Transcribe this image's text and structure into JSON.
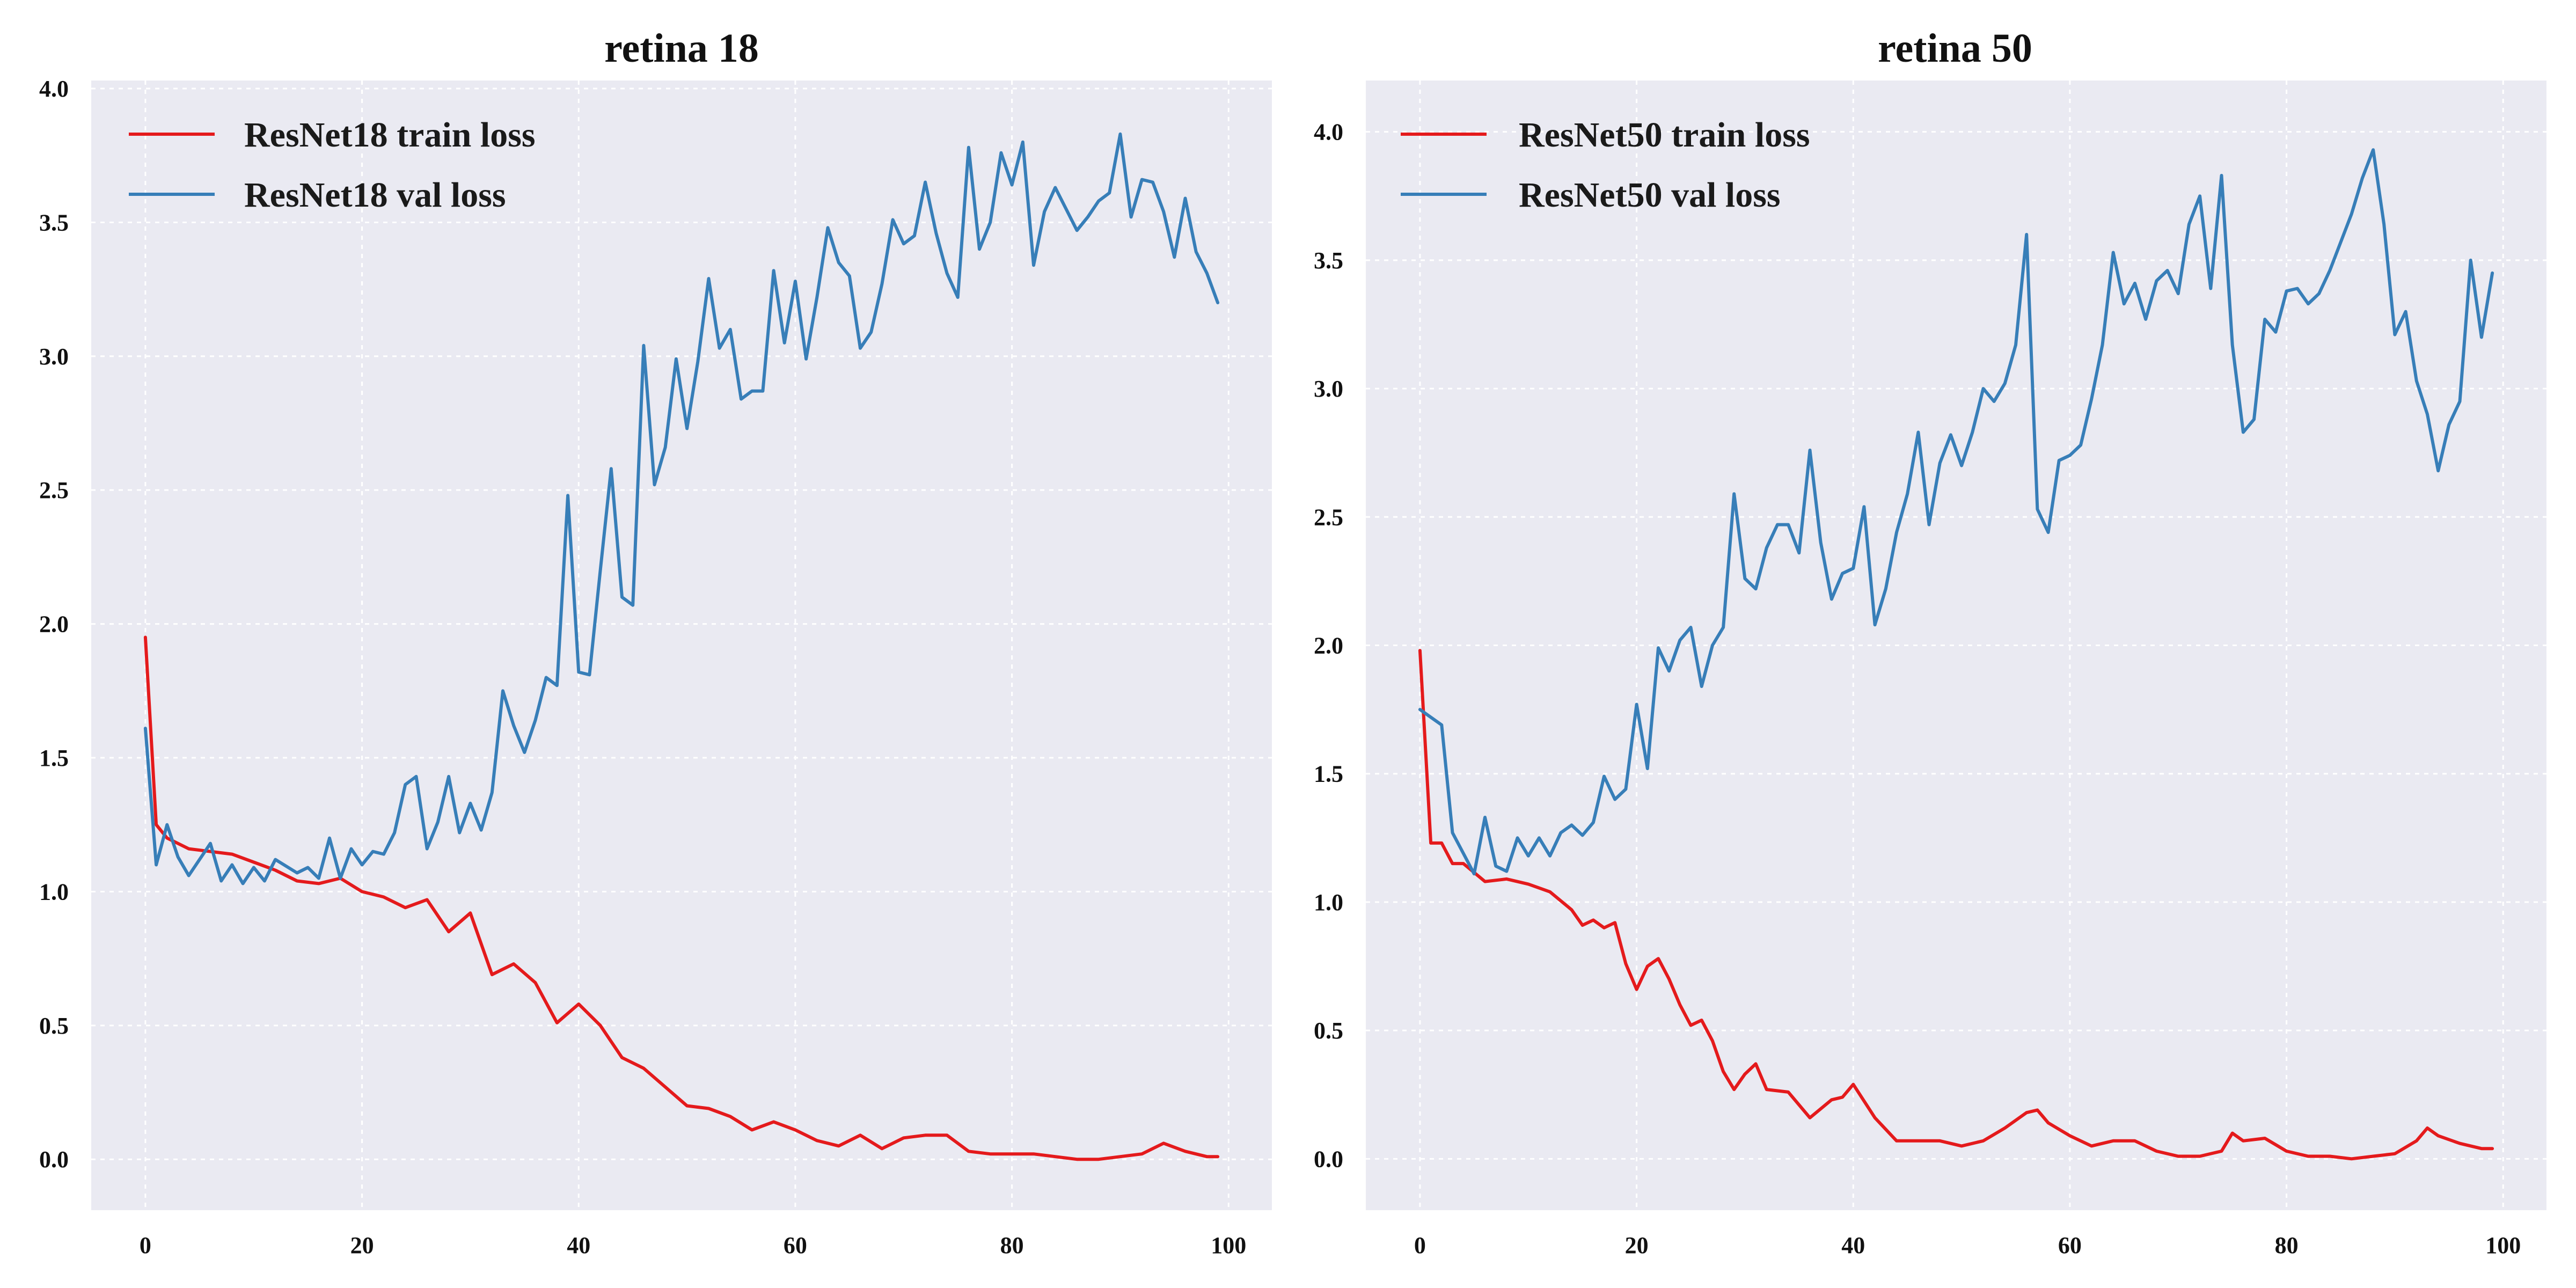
{
  "chart_data": [
    {
      "type": "line",
      "title": "retina 18",
      "xlabel": "",
      "ylabel": "",
      "xlim": [
        -5,
        104
      ],
      "ylim": [
        -0.19,
        4.03
      ],
      "xticks": [
        0,
        20,
        40,
        60,
        80,
        100
      ],
      "yticks": [
        0.0,
        0.5,
        1.0,
        1.5,
        2.0,
        2.5,
        3.0,
        3.5,
        4.0
      ],
      "ytick_labels": [
        "0.0",
        "0.5",
        "1.0",
        "1.5",
        "2.0",
        "2.5",
        "3.0",
        "3.5",
        "4.0"
      ],
      "grid": true,
      "legend_position": "top-left",
      "series": [
        {
          "name": "ResNet18 train loss",
          "color": "#e41a1c",
          "x": [
            0,
            1,
            2,
            4,
            6,
            8,
            10,
            12,
            14,
            16,
            18,
            20,
            22,
            24,
            26,
            28,
            30,
            32,
            34,
            36,
            38,
            40,
            42,
            44,
            46,
            48,
            50,
            52,
            54,
            56,
            58,
            60,
            62,
            64,
            66,
            68,
            70,
            72,
            74,
            76,
            78,
            80,
            82,
            84,
            86,
            88,
            90,
            92,
            94,
            96,
            98,
            99
          ],
          "y": [
            1.95,
            1.25,
            1.2,
            1.16,
            1.15,
            1.14,
            1.11,
            1.08,
            1.04,
            1.03,
            1.05,
            1.0,
            0.98,
            0.94,
            0.97,
            0.85,
            0.92,
            0.69,
            0.73,
            0.66,
            0.51,
            0.58,
            0.5,
            0.38,
            0.34,
            0.27,
            0.2,
            0.19,
            0.16,
            0.11,
            0.14,
            0.11,
            0.07,
            0.05,
            0.09,
            0.04,
            0.08,
            0.09,
            0.09,
            0.03,
            0.02,
            0.02,
            0.02,
            0.01,
            0.0,
            0.0,
            0.01,
            0.02,
            0.06,
            0.03,
            0.01,
            0.01
          ]
        },
        {
          "name": "ResNet18 val loss",
          "color": "#377eb8",
          "x": [
            0,
            1,
            2,
            3,
            4,
            6,
            7,
            8,
            9,
            10,
            11,
            12,
            14,
            15,
            16,
            17,
            18,
            19,
            20,
            21,
            22,
            23,
            24,
            25,
            26,
            27,
            28,
            29,
            30,
            31,
            32,
            33,
            34,
            35,
            36,
            37,
            38,
            39,
            40,
            41,
            42,
            43,
            44,
            45,
            46,
            47,
            48,
            49,
            50,
            51,
            52,
            53,
            54,
            55,
            56,
            57,
            58,
            59,
            60,
            61,
            62,
            63,
            64,
            65,
            66,
            67,
            68,
            69,
            70,
            71,
            72,
            73,
            74,
            75,
            76,
            77,
            78,
            79,
            80,
            81,
            82,
            83,
            84,
            85,
            86,
            87,
            88,
            89,
            90,
            91,
            92,
            93,
            94,
            95,
            96,
            97,
            98,
            99
          ],
          "y": [
            1.61,
            1.1,
            1.25,
            1.13,
            1.06,
            1.18,
            1.04,
            1.1,
            1.03,
            1.09,
            1.04,
            1.12,
            1.07,
            1.09,
            1.05,
            1.2,
            1.05,
            1.16,
            1.1,
            1.15,
            1.14,
            1.22,
            1.4,
            1.43,
            1.16,
            1.26,
            1.43,
            1.22,
            1.33,
            1.23,
            1.37,
            1.75,
            1.62,
            1.52,
            1.64,
            1.8,
            1.77,
            2.48,
            1.82,
            1.81,
            2.2,
            2.58,
            2.1,
            2.07,
            3.04,
            2.52,
            2.66,
            2.99,
            2.73,
            2.98,
            3.29,
            3.03,
            3.1,
            2.84,
            2.87,
            2.87,
            3.32,
            3.05,
            3.28,
            2.99,
            3.22,
            3.48,
            3.35,
            3.3,
            3.03,
            3.09,
            3.27,
            3.51,
            3.42,
            3.45,
            3.65,
            3.46,
            3.31,
            3.22,
            3.78,
            3.4,
            3.5,
            3.76,
            3.64,
            3.8,
            3.34,
            3.54,
            3.63,
            3.55,
            3.47,
            3.52,
            3.58,
            3.61,
            3.83,
            3.52,
            3.66,
            3.65,
            3.54,
            3.37,
            3.59,
            3.39,
            3.31,
            3.2
          ]
        }
      ]
    },
    {
      "type": "line",
      "title": "retina 50",
      "xlabel": "",
      "ylabel": "",
      "xlim": [
        -5,
        104
      ],
      "ylim": [
        -0.2,
        4.2
      ],
      "xticks": [
        0,
        20,
        40,
        60,
        80,
        100
      ],
      "yticks": [
        0.0,
        0.5,
        1.0,
        1.5,
        2.0,
        2.5,
        3.0,
        3.5,
        4.0
      ],
      "ytick_labels": [
        "0.0",
        "0.5",
        "1.0",
        "1.5",
        "2.0",
        "2.5",
        "3.0",
        "3.5",
        "4.0"
      ],
      "grid": true,
      "legend_position": "top-left",
      "series": [
        {
          "name": "ResNet50 train loss",
          "color": "#e41a1c",
          "x": [
            0,
            1,
            2,
            3,
            4,
            6,
            8,
            10,
            12,
            14,
            15,
            16,
            17,
            18,
            19,
            20,
            21,
            22,
            23,
            24,
            25,
            26,
            27,
            28,
            29,
            30,
            31,
            32,
            34,
            36,
            38,
            39,
            40,
            42,
            44,
            46,
            48,
            50,
            52,
            54,
            56,
            57,
            58,
            60,
            62,
            64,
            66,
            68,
            70,
            72,
            74,
            75,
            76,
            78,
            80,
            82,
            84,
            86,
            88,
            90,
            92,
            93,
            94,
            96,
            98,
            99
          ],
          "y": [
            1.98,
            1.23,
            1.23,
            1.15,
            1.15,
            1.08,
            1.09,
            1.07,
            1.04,
            0.97,
            0.91,
            0.93,
            0.9,
            0.92,
            0.76,
            0.66,
            0.75,
            0.78,
            0.7,
            0.6,
            0.52,
            0.54,
            0.46,
            0.34,
            0.27,
            0.33,
            0.37,
            0.27,
            0.26,
            0.16,
            0.23,
            0.24,
            0.29,
            0.16,
            0.07,
            0.07,
            0.07,
            0.05,
            0.07,
            0.12,
            0.18,
            0.19,
            0.14,
            0.09,
            0.05,
            0.07,
            0.07,
            0.03,
            0.01,
            0.01,
            0.03,
            0.1,
            0.07,
            0.08,
            0.03,
            0.01,
            0.01,
            0.0,
            0.01,
            0.02,
            0.07,
            0.12,
            0.09,
            0.06,
            0.04,
            0.04
          ]
        },
        {
          "name": "ResNet50 val loss",
          "color": "#377eb8",
          "x": [
            0,
            1,
            2,
            3,
            4,
            5,
            6,
            7,
            8,
            9,
            10,
            11,
            12,
            13,
            14,
            15,
            16,
            17,
            18,
            19,
            20,
            21,
            22,
            23,
            24,
            25,
            26,
            27,
            28,
            29,
            30,
            31,
            32,
            33,
            34,
            35,
            36,
            37,
            38,
            39,
            40,
            41,
            42,
            43,
            44,
            45,
            46,
            47,
            48,
            49,
            50,
            51,
            52,
            53,
            54,
            55,
            56,
            57,
            58,
            59,
            60,
            61,
            62,
            63,
            64,
            65,
            66,
            67,
            68,
            69,
            70,
            71,
            72,
            73,
            74,
            75,
            76,
            77,
            78,
            79,
            80,
            81,
            82,
            83,
            84,
            85,
            86,
            87,
            88,
            89,
            90,
            91,
            92,
            93,
            94,
            95,
            96,
            97,
            98,
            99
          ],
          "y": [
            1.75,
            1.72,
            1.69,
            1.27,
            1.19,
            1.11,
            1.33,
            1.14,
            1.12,
            1.25,
            1.18,
            1.25,
            1.18,
            1.27,
            1.3,
            1.26,
            1.31,
            1.49,
            1.4,
            1.44,
            1.77,
            1.52,
            1.99,
            1.9,
            2.02,
            2.07,
            1.84,
            2.0,
            2.07,
            2.59,
            2.26,
            2.22,
            2.38,
            2.47,
            2.47,
            2.36,
            2.76,
            2.4,
            2.18,
            2.28,
            2.3,
            2.54,
            2.08,
            2.22,
            2.44,
            2.59,
            2.83,
            2.47,
            2.71,
            2.82,
            2.7,
            2.83,
            3.0,
            2.95,
            3.02,
            3.17,
            3.6,
            2.53,
            2.44,
            2.72,
            2.74,
            2.78,
            2.96,
            3.17,
            3.53,
            3.33,
            3.41,
            3.27,
            3.42,
            3.46,
            3.37,
            3.64,
            3.75,
            3.39,
            3.83,
            3.17,
            2.83,
            2.88,
            3.27,
            3.22,
            3.38,
            3.39,
            3.33,
            3.37,
            3.46,
            3.57,
            3.68,
            3.82,
            3.93,
            3.64,
            3.21,
            3.3,
            3.03,
            2.9,
            2.68,
            2.86,
            2.95,
            3.5,
            3.2,
            3.45
          ]
        }
      ]
    }
  ]
}
